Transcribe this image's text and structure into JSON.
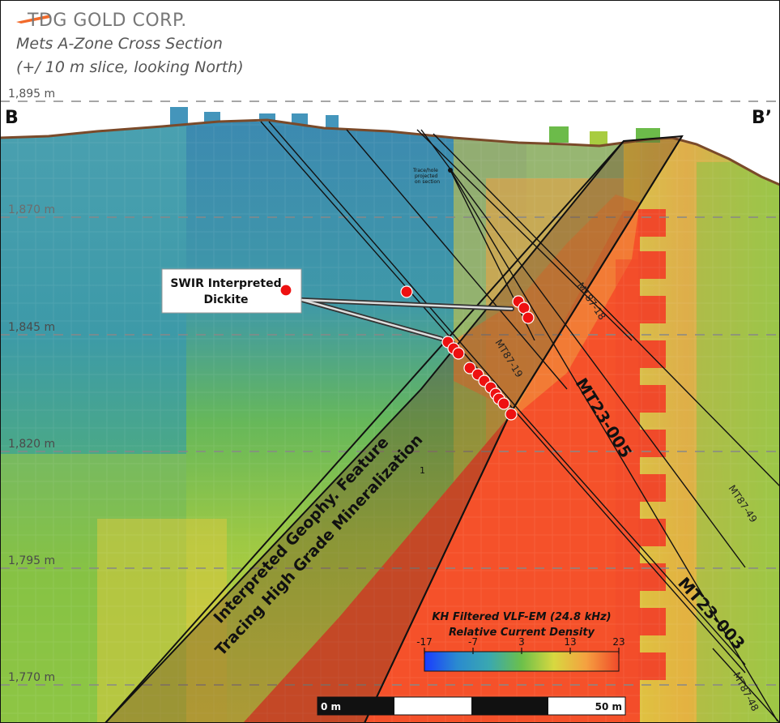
{
  "header": {
    "company": "TDG GOLD CORP.",
    "title": "Mets A-Zone Cross Section",
    "subtitle": "(+/  10 m slice, looking North)"
  },
  "section_ends": {
    "left": "B",
    "right": "B’"
  },
  "elevations": [
    "1,895 m",
    "1,870 m",
    "1,845 m",
    "1,820 m",
    "1,795 m",
    "1,770 m"
  ],
  "callout": {
    "line1": "SWIR Interpreted",
    "line2": "Dickite"
  },
  "projection_note": [
    "Trace/hole",
    "projected",
    "on section"
  ],
  "feature_label": {
    "line1": "Interpreted Geophy. Feature",
    "line2": "Tracing High Grade Mineralization",
    "superscript": "1"
  },
  "drillholes": {
    "mt87_18": "MT87-18",
    "mt87_19": "MT87-19",
    "mt23_005": "MT23-005",
    "mt23_003": "MT23-003",
    "mt87_49": "MT87-49",
    "mt87_48": "MT87-48"
  },
  "legend": {
    "title": "KH Filtered VLF-EM (24.8 kHz)",
    "subtitle": "Relative Current Density",
    "ticks": [
      "-17",
      "-7",
      "3",
      "13",
      "23"
    ],
    "colors": [
      "#1a3cff",
      "#2a8ad0",
      "#3aa8b0",
      "#6cc04a",
      "#d8d840",
      "#f5a040",
      "#f04a2a"
    ]
  },
  "scale_bar": {
    "start": "0 m",
    "end": "50 m"
  },
  "colors": {
    "topography": "#7a4a2a",
    "anomaly": "#f5512a",
    "sample": "#ee1111",
    "logo": "#f26a2a"
  }
}
